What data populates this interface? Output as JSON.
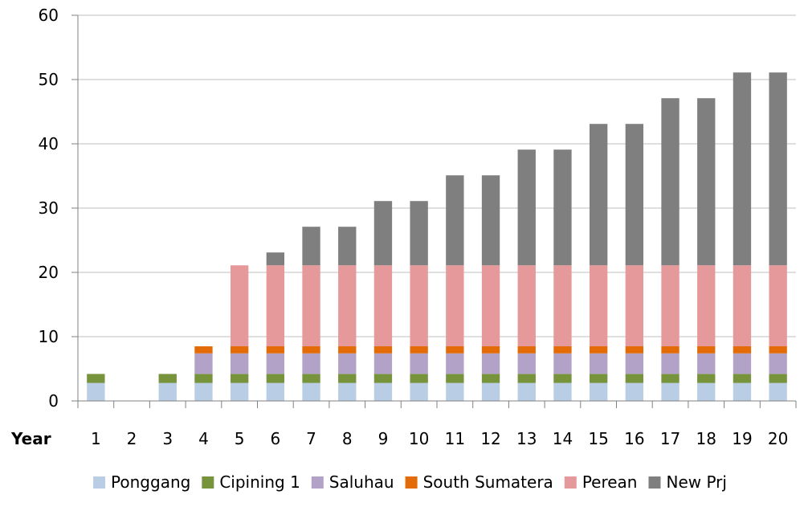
{
  "chart_data": {
    "type": "bar",
    "stacked": true,
    "xlabel": "Year",
    "ylabel": "",
    "title": "",
    "categories": [
      "1",
      "2",
      "3",
      "4",
      "5",
      "6",
      "7",
      "8",
      "9",
      "10",
      "11",
      "12",
      "13",
      "14",
      "15",
      "16",
      "17",
      "18",
      "19",
      "20"
    ],
    "ylim": [
      0,
      60
    ],
    "yticks": [
      0,
      10,
      20,
      30,
      40,
      50,
      60
    ],
    "grid": true,
    "legend_position": "bottom",
    "series": [
      {
        "name": "Ponggang",
        "color": "#b9cde5",
        "values": [
          2.8,
          0,
          2.8,
          2.8,
          2.8,
          2.8,
          2.8,
          2.8,
          2.8,
          2.8,
          2.8,
          2.8,
          2.8,
          2.8,
          2.8,
          2.8,
          2.8,
          2.8,
          2.8,
          2.8
        ]
      },
      {
        "name": "Cipining 1",
        "color": "#77933c",
        "values": [
          1.4,
          0,
          1.4,
          1.4,
          1.4,
          1.4,
          1.4,
          1.4,
          1.4,
          1.4,
          1.4,
          1.4,
          1.4,
          1.4,
          1.4,
          1.4,
          1.4,
          1.4,
          1.4,
          1.4
        ]
      },
      {
        "name": "Saluhau",
        "color": "#b3a2c7",
        "values": [
          0,
          0,
          0,
          3.2,
          3.2,
          3.2,
          3.2,
          3.2,
          3.2,
          3.2,
          3.2,
          3.2,
          3.2,
          3.2,
          3.2,
          3.2,
          3.2,
          3.2,
          3.2,
          3.2
        ]
      },
      {
        "name": "South Sumatera",
        "color": "#e36c09",
        "values": [
          0,
          0,
          0,
          1.1,
          1.1,
          1.1,
          1.1,
          1.1,
          1.1,
          1.1,
          1.1,
          1.1,
          1.1,
          1.1,
          1.1,
          1.1,
          1.1,
          1.1,
          1.1,
          1.1
        ]
      },
      {
        "name": "Perean",
        "color": "#e6999a",
        "values": [
          0,
          0,
          0,
          0,
          12.6,
          12.6,
          12.6,
          12.6,
          12.6,
          12.6,
          12.6,
          12.6,
          12.6,
          12.6,
          12.6,
          12.6,
          12.6,
          12.6,
          12.6,
          12.6
        ]
      },
      {
        "name": "New Prj",
        "color": "#7f7f7f",
        "values": [
          0,
          0,
          0,
          0,
          0,
          2,
          6,
          6,
          10,
          10,
          14,
          14,
          18,
          18,
          22,
          22,
          26,
          26,
          30,
          30
        ]
      }
    ]
  }
}
